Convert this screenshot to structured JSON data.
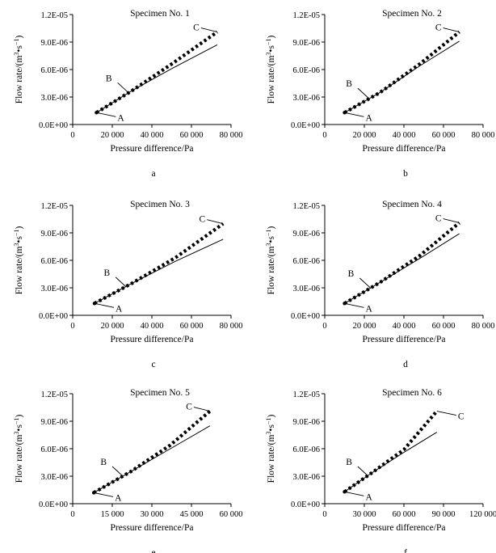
{
  "chart_data": [
    {
      "panel_letter": "a",
      "type": "line",
      "title": "Specimen No. 1",
      "xlabel": "Pressure difference/Pa",
      "ylabel": "Flow rate/(m",
      "ylabel_sup1": "3",
      "ylabel_mid": "•s",
      "ylabel_sup2": "−1",
      "ylabel_end": ")",
      "xlim": [
        0,
        80000
      ],
      "ylim": [
        0,
        1.2e-05
      ],
      "xticks": [
        0,
        20000,
        40000,
        60000,
        80000
      ],
      "xtick_labels": [
        "0",
        "20 000",
        "40 000",
        "60 000",
        "80 000"
      ],
      "yticks": [
        0,
        3e-06,
        6e-06,
        9e-06,
        1.2e-05
      ],
      "ytick_labels": [
        "0.0E+00",
        "3.0E-06",
        "6.0E-06",
        "9.0E-06",
        "1.2E-05"
      ],
      "series": [
        {
          "name": "linear",
          "style": "solid",
          "x": [
            12000,
            30000,
            50000,
            73000
          ],
          "y": [
            1.3e-06,
            3.7e-06,
            6.1e-06,
            8.7e-06
          ]
        },
        {
          "name": "measured",
          "style": "dotted",
          "x": [
            12000,
            30000,
            50000,
            73000
          ],
          "y": [
            1.3e-06,
            3.7e-06,
            6.6e-06,
            1.01e-05
          ]
        }
      ],
      "points": [
        {
          "label": "A",
          "x": 12000,
          "y": 1.3e-06,
          "side": "below-right"
        },
        {
          "label": "B",
          "x": 28000,
          "y": 3.5e-06,
          "side": "upper-left"
        },
        {
          "label": "C",
          "x": 73000,
          "y": 1.01e-05,
          "side": "left"
        }
      ]
    },
    {
      "panel_letter": "b",
      "type": "line",
      "title": "Specimen No. 2",
      "xlabel": "Pressure difference/Pa",
      "ylabel": "Flow rate/(m",
      "ylabel_sup1": "3",
      "ylabel_mid": "•s",
      "ylabel_sup2": "−1",
      "ylabel_end": ")",
      "xlim": [
        0,
        80000
      ],
      "ylim": [
        0,
        1.2e-05
      ],
      "xticks": [
        0,
        20000,
        40000,
        60000,
        80000
      ],
      "xtick_labels": [
        "0",
        "20 000",
        "40 000",
        "60 000",
        "80 000"
      ],
      "yticks": [
        0,
        3e-06,
        6e-06,
        9e-06,
        1.2e-05
      ],
      "ytick_labels": [
        "0.0E+00",
        "3.0E-06",
        "6.0E-06",
        "9.0E-06",
        "1.2E-05"
      ],
      "series": [
        {
          "name": "linear",
          "style": "solid",
          "x": [
            10000,
            28000,
            48000,
            68000
          ],
          "y": [
            1.3e-06,
            3.5e-06,
            6.4e-06,
            9.1e-06
          ]
        },
        {
          "name": "measured",
          "style": "dotted",
          "x": [
            10000,
            28000,
            48000,
            68000
          ],
          "y": [
            1.3e-06,
            3.5e-06,
            6.6e-06,
            1.01e-05
          ]
        }
      ],
      "points": [
        {
          "label": "A",
          "x": 10000,
          "y": 1.3e-06,
          "side": "below-right"
        },
        {
          "label": "B",
          "x": 22000,
          "y": 2.9e-06,
          "side": "upper-left"
        },
        {
          "label": "C",
          "x": 68000,
          "y": 1.01e-05,
          "side": "left"
        }
      ]
    },
    {
      "panel_letter": "c",
      "type": "line",
      "title": "Specimen No. 3",
      "xlabel": "Pressure difference/Pa",
      "ylabel": "Flow rate/(m",
      "ylabel_sup1": "3",
      "ylabel_mid": "•s",
      "ylabel_sup2": "−1",
      "ylabel_end": ")",
      "xlim": [
        0,
        80000
      ],
      "ylim": [
        0,
        1.2e-05
      ],
      "xticks": [
        0,
        20000,
        40000,
        60000,
        80000
      ],
      "xtick_labels": [
        "0",
        "20 000",
        "40 000",
        "60 000",
        "80 000"
      ],
      "yticks": [
        0,
        3e-06,
        6e-06,
        9e-06,
        1.2e-05
      ],
      "ytick_labels": [
        "0.0E+00",
        "3.0E-06",
        "6.0E-06",
        "9.0E-06",
        "1.2E-05"
      ],
      "series": [
        {
          "name": "linear",
          "style": "solid",
          "x": [
            11000,
            30000,
            52000,
            76000
          ],
          "y": [
            1.3e-06,
            3.5e-06,
            5.9e-06,
            8.3e-06
          ]
        },
        {
          "name": "measured",
          "style": "dotted",
          "x": [
            11000,
            30000,
            52000,
            76000
          ],
          "y": [
            1.3e-06,
            3.5e-06,
            6.3e-06,
            1e-05
          ]
        }
      ],
      "points": [
        {
          "label": "A",
          "x": 11000,
          "y": 1.3e-06,
          "side": "below-right"
        },
        {
          "label": "B",
          "x": 27000,
          "y": 3.1e-06,
          "side": "upper-left"
        },
        {
          "label": "C",
          "x": 76000,
          "y": 1e-05,
          "side": "left"
        }
      ]
    },
    {
      "panel_letter": "d",
      "type": "line",
      "title": "Specimen No. 4",
      "xlabel": "Pressure difference/Pa",
      "ylabel": "Flow rate/(m",
      "ylabel_sup1": "3",
      "ylabel_mid": "•s",
      "ylabel_sup2": "−1",
      "ylabel_end": ")",
      "xlim": [
        0,
        80000
      ],
      "ylim": [
        0,
        1.2e-05
      ],
      "xticks": [
        0,
        20000,
        40000,
        60000,
        80000
      ],
      "xtick_labels": [
        "0",
        "20 000",
        "40 000",
        "60 000",
        "80 000"
      ],
      "yticks": [
        0,
        3e-06,
        6e-06,
        9e-06,
        1.2e-05
      ],
      "ytick_labels": [
        "0.0E+00",
        "3.0E-06",
        "6.0E-06",
        "9.0E-06",
        "1.2E-05"
      ],
      "series": [
        {
          "name": "linear",
          "style": "solid",
          "x": [
            10000,
            28000,
            48000,
            68000
          ],
          "y": [
            1.3e-06,
            3.6e-06,
            6.2e-06,
            8.9e-06
          ]
        },
        {
          "name": "measured",
          "style": "dotted",
          "x": [
            10000,
            28000,
            48000,
            68000
          ],
          "y": [
            1.3e-06,
            3.6e-06,
            6.5e-06,
            1.01e-05
          ]
        }
      ],
      "points": [
        {
          "label": "A",
          "x": 10000,
          "y": 1.3e-06,
          "side": "below-right"
        },
        {
          "label": "B",
          "x": 23000,
          "y": 3e-06,
          "side": "upper-left"
        },
        {
          "label": "C",
          "x": 68000,
          "y": 1.01e-05,
          "side": "left"
        }
      ]
    },
    {
      "panel_letter": "e",
      "type": "line",
      "title": "Specimen No. 5",
      "xlabel": "Pressure difference/Pa",
      "ylabel": "Flow rate/(m",
      "ylabel_sup1": "3",
      "ylabel_mid": "•s",
      "ylabel_sup2": "−1",
      "ylabel_end": ")",
      "xlim": [
        0,
        60000
      ],
      "ylim": [
        0,
        1.2e-05
      ],
      "xticks": [
        0,
        15000,
        30000,
        45000,
        60000
      ],
      "xtick_labels": [
        "0",
        "15 000",
        "30 000",
        "45 000",
        "60 000"
      ],
      "yticks": [
        0,
        3e-06,
        6e-06,
        9e-06,
        1.2e-05
      ],
      "ytick_labels": [
        "0.0E+00",
        "3.0E-06",
        "6.0E-06",
        "9.0E-06",
        "1.2E-05"
      ],
      "series": [
        {
          "name": "linear",
          "style": "solid",
          "x": [
            8000,
            22000,
            37000,
            52000
          ],
          "y": [
            1.2e-06,
            3.5e-06,
            6e-06,
            8.5e-06
          ]
        },
        {
          "name": "measured",
          "style": "dotted",
          "x": [
            8000,
            22000,
            37000,
            52000
          ],
          "y": [
            1.2e-06,
            3.5e-06,
            6.4e-06,
            1.01e-05
          ]
        }
      ],
      "points": [
        {
          "label": "A",
          "x": 8000,
          "y": 1.2e-06,
          "side": "below-right"
        },
        {
          "label": "B",
          "x": 19000,
          "y": 3e-06,
          "side": "upper-left"
        },
        {
          "label": "C",
          "x": 52000,
          "y": 1.01e-05,
          "side": "left"
        }
      ]
    },
    {
      "panel_letter": "f",
      "type": "line",
      "title": "Specimen No. 6",
      "xlabel": "Pressure difference/Pa",
      "ylabel": "Flow rate/(m",
      "ylabel_sup1": "3",
      "ylabel_mid": "•s",
      "ylabel_sup2": "−1",
      "ylabel_end": ")",
      "xlim": [
        0,
        120000
      ],
      "ylim": [
        0,
        1.2e-05
      ],
      "xticks": [
        0,
        30000,
        60000,
        90000,
        120000
      ],
      "xtick_labels": [
        "0",
        "30 000",
        "60 000",
        "90 000",
        "120 000"
      ],
      "yticks": [
        0,
        3e-06,
        6e-06,
        9e-06,
        1.2e-05
      ],
      "ytick_labels": [
        "0.0E+00",
        "3.0E-06",
        "6.0E-06",
        "9.0E-06",
        "1.2E-05"
      ],
      "series": [
        {
          "name": "linear",
          "style": "solid",
          "x": [
            15000,
            35000,
            60000,
            85000
          ],
          "y": [
            1.3e-06,
            3.3e-06,
            5.6e-06,
            7.8e-06
          ]
        },
        {
          "name": "measured",
          "style": "dotted",
          "x": [
            15000,
            35000,
            60000,
            85000
          ],
          "y": [
            1.3e-06,
            3.3e-06,
            5.9e-06,
            1.01e-05
          ]
        }
      ],
      "points": [
        {
          "label": "A",
          "x": 15000,
          "y": 1.3e-06,
          "side": "below-right"
        },
        {
          "label": "B",
          "x": 33000,
          "y": 3e-06,
          "side": "upper-left"
        },
        {
          "label": "C",
          "x": 85000,
          "y": 1.01e-05,
          "side": "below-right"
        }
      ]
    }
  ]
}
